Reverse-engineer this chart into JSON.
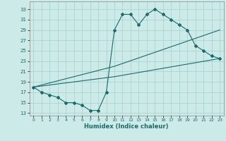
{
  "title": "",
  "xlabel": "Humidex (Indice chaleur)",
  "bg_color": "#cceae7",
  "grid_color": "#aad4d0",
  "line_color": "#1a6b6b",
  "line1_x": [
    0,
    1,
    2,
    3,
    4,
    5,
    6,
    7,
    8,
    9,
    10,
    11,
    12,
    13,
    14,
    15,
    16,
    17,
    18,
    19,
    20,
    21,
    22,
    23
  ],
  "line1_y": [
    18,
    17,
    16.5,
    16,
    15,
    15,
    14.5,
    13.5,
    13.5,
    17,
    29,
    32,
    32,
    30,
    32,
    33,
    32,
    31,
    30,
    29,
    26,
    25,
    24,
    23.5
  ],
  "line2_x": [
    0,
    10,
    23
  ],
  "line2_y": [
    18,
    22,
    29
  ],
  "line3_x": [
    0,
    10,
    23
  ],
  "line3_y": [
    18,
    20,
    23.5
  ],
  "yticks": [
    13,
    15,
    17,
    19,
    21,
    23,
    25,
    27,
    29,
    31,
    33
  ],
  "xticks": [
    0,
    1,
    2,
    3,
    4,
    5,
    6,
    7,
    8,
    9,
    10,
    11,
    12,
    13,
    14,
    15,
    16,
    17,
    18,
    19,
    20,
    21,
    22,
    23
  ],
  "ylim": [
    12.5,
    34.5
  ],
  "xlim": [
    -0.5,
    23.5
  ]
}
